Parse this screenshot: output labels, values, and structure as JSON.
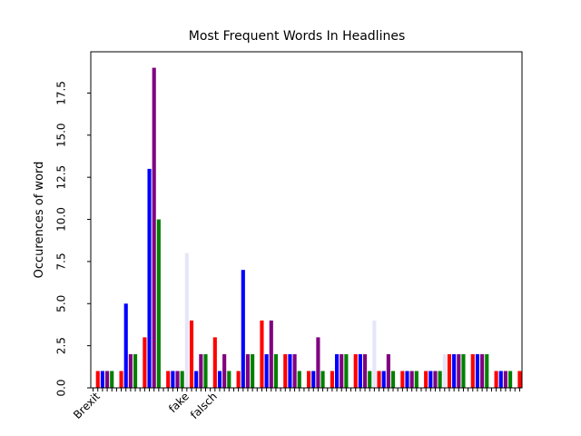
{
  "chart_data": {
    "type": "bar",
    "title": "Most Frequent Words In Headlines",
    "ylabel": "Occurences of word",
    "categories": [
      null,
      "Brexit",
      null,
      null,
      null,
      null,
      null,
      null,
      null,
      null,
      null,
      null,
      null,
      null,
      null,
      null,
      null,
      null,
      null,
      null,
      "fake",
      null,
      null,
      null,
      null,
      null,
      "falsch",
      null,
      null,
      null,
      null,
      null,
      null,
      null,
      null,
      null,
      null,
      null,
      null,
      null,
      null,
      null,
      null,
      null,
      null,
      null,
      null,
      null,
      null,
      null,
      null,
      null,
      null,
      null,
      null,
      null,
      null,
      null,
      null,
      null,
      null,
      null,
      null,
      null,
      null,
      null,
      null,
      null,
      null,
      null,
      null,
      null,
      null,
      null,
      null,
      null,
      null,
      null,
      null,
      null,
      null,
      null,
      null,
      null,
      null,
      null,
      null,
      null,
      null,
      null,
      null,
      null
    ],
    "values": [
      0,
      1,
      1,
      1,
      1,
      0,
      1,
      5,
      2,
      2,
      0,
      3,
      13,
      19,
      10,
      0,
      1,
      1,
      1,
      1,
      8,
      4,
      1,
      2,
      2,
      0,
      3,
      1,
      2,
      1,
      0,
      1,
      7,
      2,
      2,
      0,
      4,
      2,
      4,
      2,
      0,
      2,
      2,
      2,
      1,
      0,
      1,
      1,
      3,
      1,
      0,
      1,
      2,
      2,
      2,
      0,
      2,
      2,
      2,
      1,
      4,
      1,
      1,
      2,
      1,
      0,
      1,
      1,
      1,
      1,
      0,
      1,
      1,
      1,
      1,
      2,
      2,
      2,
      2,
      2,
      0,
      2,
      2,
      2,
      2,
      0,
      1,
      1,
      1,
      1,
      0,
      1
    ],
    "colors": [
      "lavender",
      "red",
      "blue",
      "purple",
      "green"
    ],
    "ylim": [
      0,
      19.95
    ],
    "yticks": [
      {
        "value": 0,
        "label": "0.0"
      },
      2.5,
      {
        "value": 5,
        "label": "5.0"
      },
      7.5,
      {
        "value": 10,
        "label": "10.0"
      },
      12.5,
      {
        "value": 15,
        "label": "15.0"
      },
      17.5
    ]
  }
}
